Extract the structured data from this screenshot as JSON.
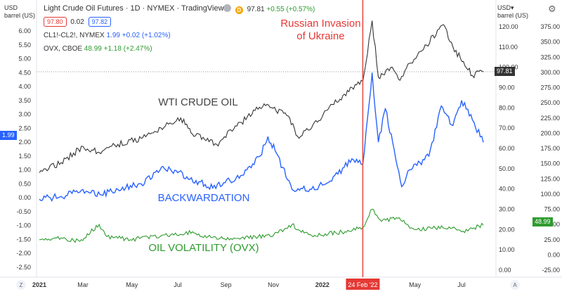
{
  "header": {
    "title": "Light Crude Oil Futures · 1D · NYMEX · TradingView",
    "last_price": "97.81",
    "change": "+0.55 (+0.57%)",
    "bid": "97.80",
    "spread": "0.02",
    "ask": "97.82",
    "spread_series": {
      "symbol": "CL1!-CL2!, NYMEX",
      "value": "1.99",
      "change": "+0.02 (+1.02%)"
    },
    "ovx_series": {
      "symbol": "OVX, CBOE",
      "value": "48.99",
      "change": "+1.18 (+2.47%)"
    }
  },
  "icons": {
    "eye": "eye-icon",
    "d_badge": "D",
    "z_button": "Z",
    "a_button": "A",
    "gear": "gear-icon"
  },
  "units": {
    "left": "USD\nbarrel (US)",
    "right": "USD▾\nbarrel (US)"
  },
  "markers": {
    "left_spread": "1.99",
    "right_ovx": "48.99",
    "right_wti": "97.81"
  },
  "colors": {
    "wti": "#333333",
    "spread": "#2962ff",
    "ovx": "#2e9b2e",
    "event": "#e53935",
    "marker_blue": "#2962ff",
    "marker_green": "#2e9b2e",
    "marker_dark": "#333333"
  },
  "chart_data": {
    "type": "line",
    "x_range": [
      "2021-01-04",
      "2022-07-29"
    ],
    "x_ticks": [
      "2021",
      "Mar",
      "May",
      "Jul",
      "Sep",
      "Nov",
      "2022",
      "May",
      "Jul"
    ],
    "event": {
      "date": "2022-02-24",
      "label": "24 Feb '22",
      "annotation": "Russian Invasion\nof Ukraine"
    },
    "axes": {
      "left_spread": {
        "ticks": [
          "6.00",
          "5.50",
          "5.00",
          "4.50",
          "4.00",
          "3.50",
          "3.00",
          "2.50",
          "2.00",
          "1.50",
          "1.00",
          "0.50",
          "0.00",
          "-0.50",
          "-1.00",
          "-1.50",
          "-2.00",
          "-2.50"
        ],
        "range": [
          -2.75,
          6.0
        ]
      },
      "right_wti": {
        "ticks": [
          "120.00",
          "110.00",
          "100.00",
          "90.00",
          "80.00",
          "70.00",
          "60.00",
          "50.00",
          "40.00",
          "30.00",
          "20.00",
          "10.00",
          "0.00"
        ],
        "range": [
          -6,
          127
        ]
      },
      "right_ovx": {
        "ticks": [
          "375.00",
          "350.00",
          "325.00",
          "300.00",
          "275.00",
          "250.00",
          "225.00",
          "200.00",
          "175.00",
          "150.00",
          "125.00",
          "100.00",
          "75.00",
          "50.00",
          "25.00",
          "0.00",
          "-25.00"
        ],
        "range": [
          -35,
          380
        ]
      }
    },
    "series": [
      {
        "name": "WTI CRUDE OIL",
        "axis": "right_wti",
        "points": [
          [
            "2021-01-04",
            48
          ],
          [
            "2021-02-01",
            53
          ],
          [
            "2021-03-01",
            61
          ],
          [
            "2021-03-22",
            58
          ],
          [
            "2021-04-15",
            62
          ],
          [
            "2021-05-15",
            65
          ],
          [
            "2021-06-15",
            71
          ],
          [
            "2021-07-05",
            75
          ],
          [
            "2021-07-20",
            67
          ],
          [
            "2021-08-20",
            62
          ],
          [
            "2021-09-15",
            71
          ],
          [
            "2021-10-20",
            82
          ],
          [
            "2021-11-20",
            76
          ],
          [
            "2021-12-02",
            66
          ],
          [
            "2021-12-20",
            70
          ],
          [
            "2022-01-10",
            79
          ],
          [
            "2022-02-10",
            90
          ],
          [
            "2022-02-24",
            93
          ],
          [
            "2022-03-08",
            123
          ],
          [
            "2022-03-16",
            95
          ],
          [
            "2022-04-01",
            100
          ],
          [
            "2022-04-11",
            94
          ],
          [
            "2022-05-01",
            104
          ],
          [
            "2022-06-08",
            121
          ],
          [
            "2022-06-20",
            110
          ],
          [
            "2022-07-15",
            96
          ],
          [
            "2022-07-29",
            97.81
          ]
        ]
      },
      {
        "name": "BACKWARDATION",
        "axis": "left_spread",
        "points": [
          [
            "2021-01-04",
            -0.05
          ],
          [
            "2021-02-01",
            0.05
          ],
          [
            "2021-03-01",
            0.3
          ],
          [
            "2021-03-25",
            0.1
          ],
          [
            "2021-04-15",
            0.3
          ],
          [
            "2021-05-15",
            0.5
          ],
          [
            "2021-06-10",
            1.1
          ],
          [
            "2021-07-01",
            0.9
          ],
          [
            "2021-08-15",
            0.35
          ],
          [
            "2021-09-20",
            0.8
          ],
          [
            "2021-10-15",
            1.5
          ],
          [
            "2021-10-25",
            2.2
          ],
          [
            "2021-11-05",
            1.6
          ],
          [
            "2021-11-25",
            0.3
          ],
          [
            "2021-12-20",
            0.3
          ],
          [
            "2022-01-15",
            0.6
          ],
          [
            "2022-02-10",
            1.4
          ],
          [
            "2022-02-24",
            1.2
          ],
          [
            "2022-03-08",
            4.5
          ],
          [
            "2022-03-16",
            2.0
          ],
          [
            "2022-03-25",
            3.2
          ],
          [
            "2022-04-15",
            0.4
          ],
          [
            "2022-04-25",
            1.0
          ],
          [
            "2022-05-20",
            1.5
          ],
          [
            "2022-06-05",
            3.3
          ],
          [
            "2022-06-20",
            2.6
          ],
          [
            "2022-07-01",
            3.5
          ],
          [
            "2022-07-15",
            2.8
          ],
          [
            "2022-07-29",
            1.99
          ]
        ]
      },
      {
        "name": "OIL VOLATILITY (OVX)",
        "axis": "right_ovx",
        "points": [
          [
            "2021-01-04",
            25
          ],
          [
            "2021-02-01",
            28
          ],
          [
            "2021-02-25",
            22
          ],
          [
            "2021-03-22",
            50
          ],
          [
            "2021-04-01",
            30
          ],
          [
            "2021-05-01",
            25
          ],
          [
            "2021-07-20",
            38
          ],
          [
            "2021-08-01",
            30
          ],
          [
            "2021-09-15",
            27
          ],
          [
            "2021-11-01",
            32
          ],
          [
            "2021-11-25",
            50
          ],
          [
            "2021-12-05",
            40
          ],
          [
            "2021-12-20",
            32
          ],
          [
            "2022-02-01",
            38
          ],
          [
            "2022-02-24",
            45
          ],
          [
            "2022-03-08",
            75
          ],
          [
            "2022-03-20",
            55
          ],
          [
            "2022-04-10",
            60
          ],
          [
            "2022-05-01",
            42
          ],
          [
            "2022-06-15",
            46
          ],
          [
            "2022-07-01",
            38
          ],
          [
            "2022-07-29",
            48.99
          ]
        ]
      }
    ]
  }
}
